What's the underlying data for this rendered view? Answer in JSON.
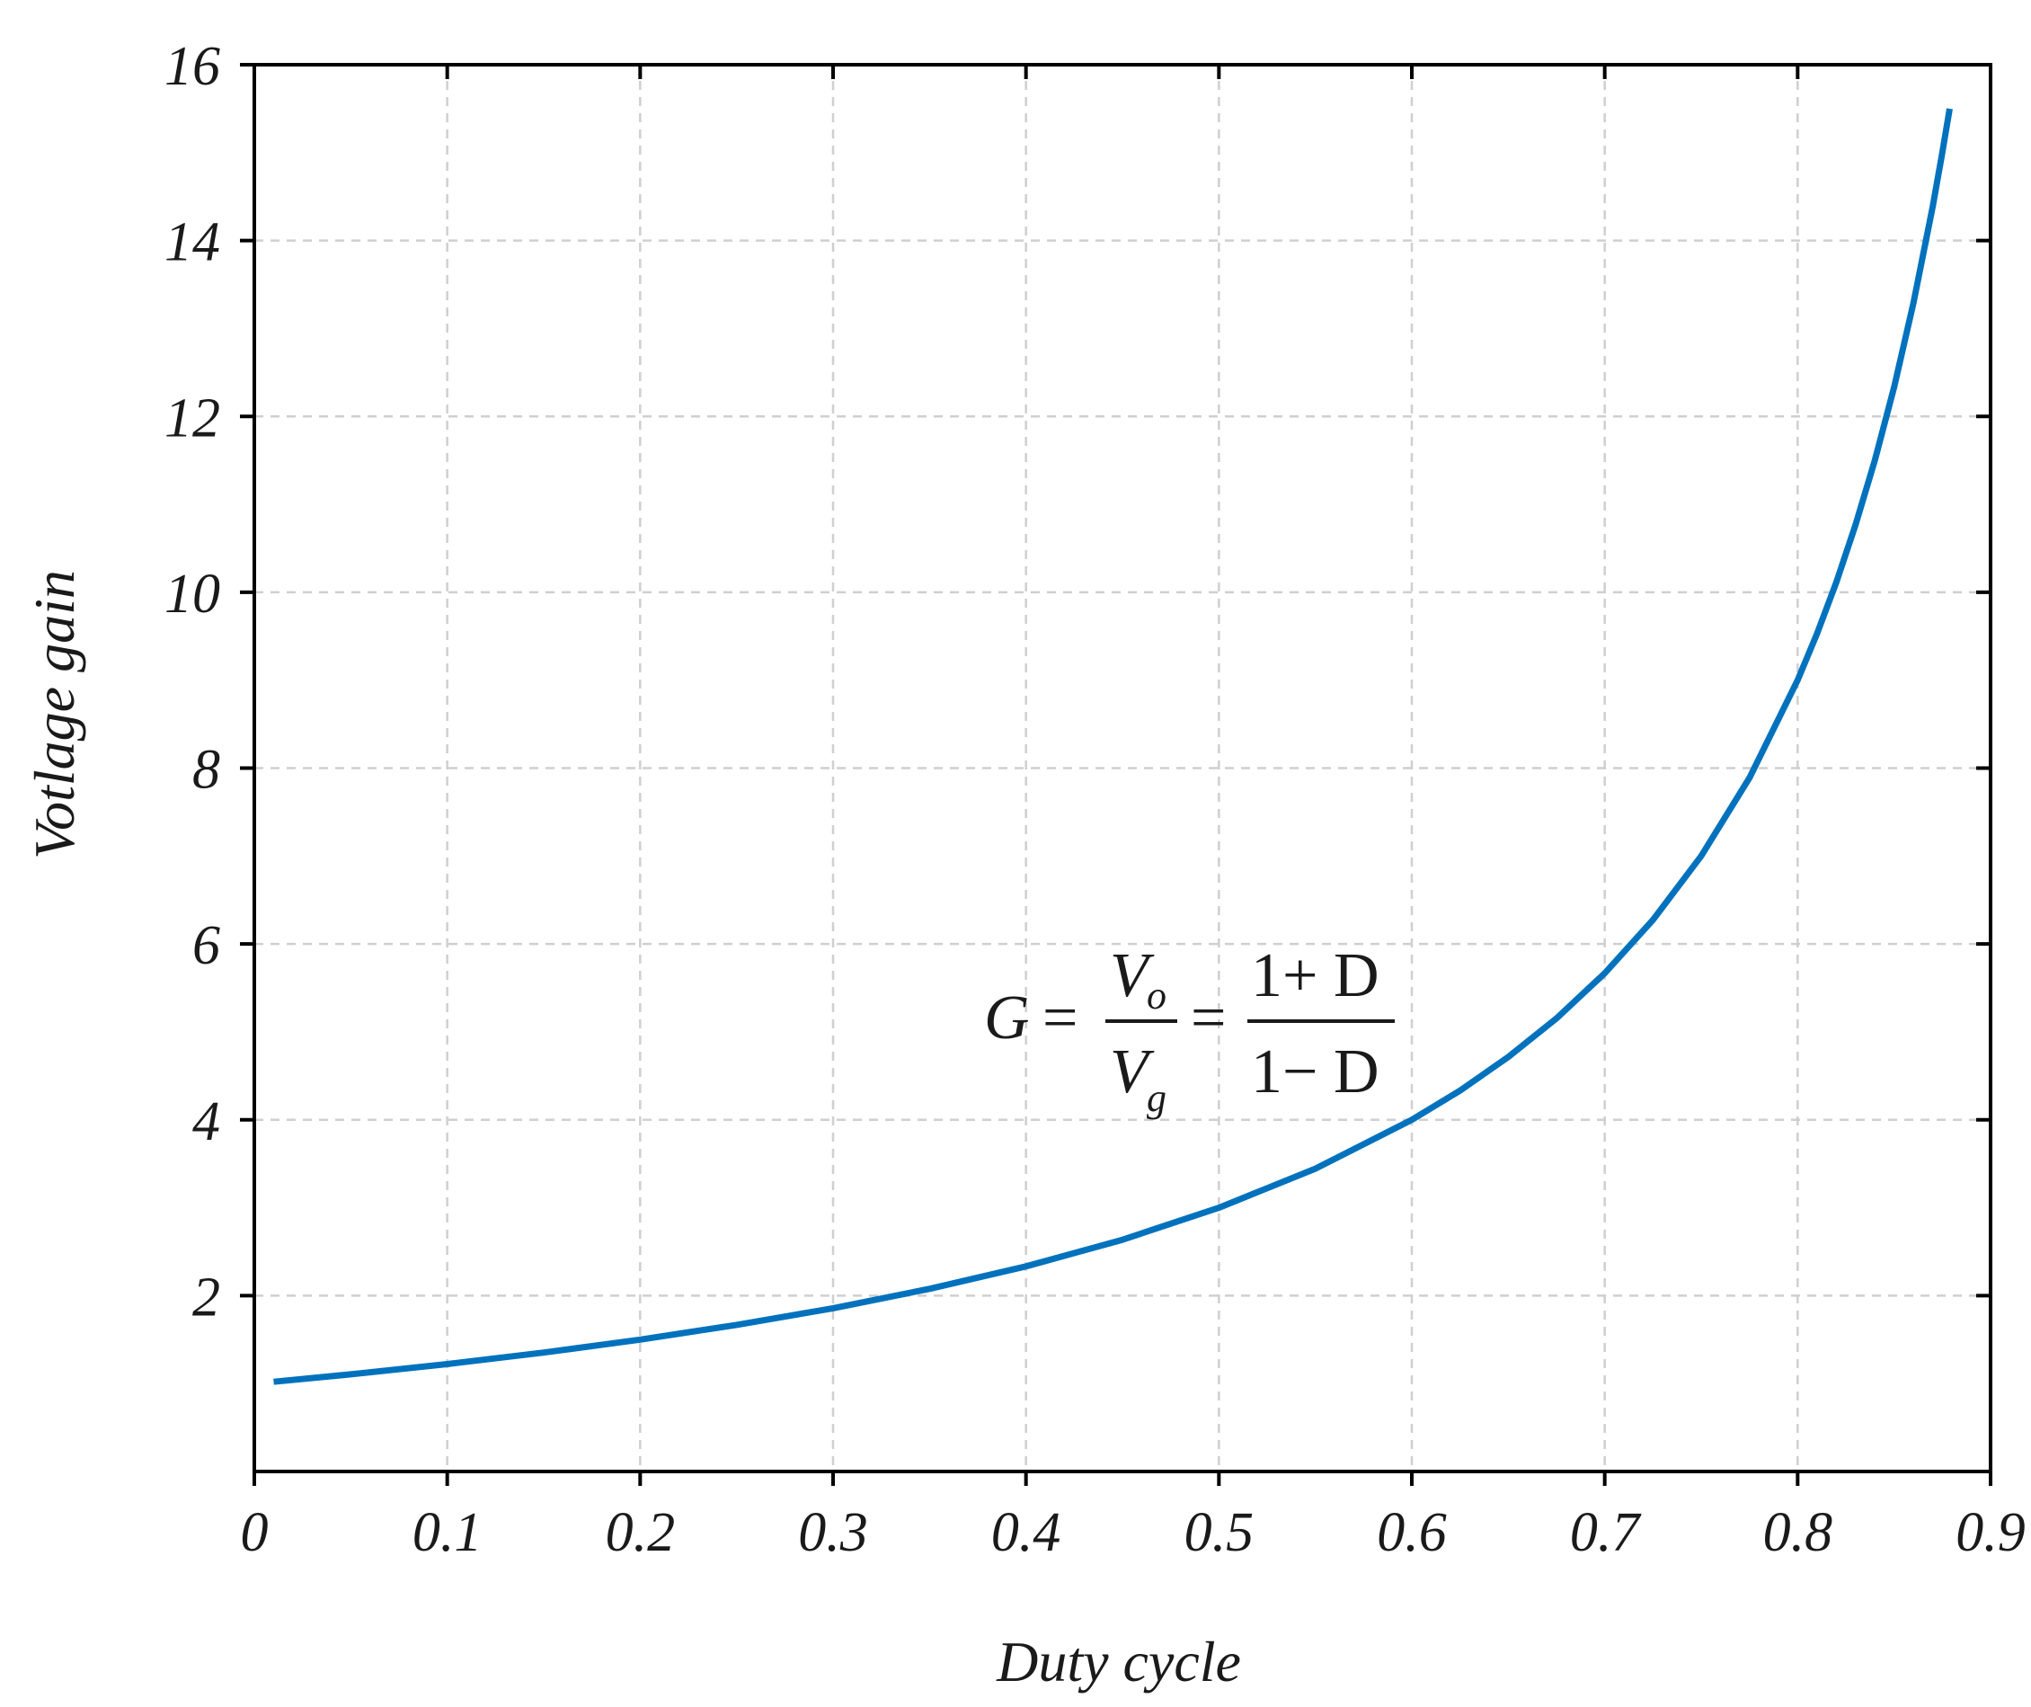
{
  "chart_data": {
    "type": "line",
    "xlabel": "Duty cycle",
    "ylabel": "Votlage gain",
    "xlim": [
      0,
      0.9
    ],
    "ylim": [
      0,
      16
    ],
    "xticks": [
      0,
      0.1,
      0.2,
      0.3,
      0.4,
      0.5,
      0.6,
      0.7,
      0.8,
      0.9
    ],
    "xtick_labels": [
      "0",
      "0.1",
      "0.2",
      "0.3",
      "0.4",
      "0.5",
      "0.6",
      "0.7",
      "0.8",
      "0.9"
    ],
    "yticks": [
      2,
      4,
      6,
      8,
      10,
      12,
      14,
      16
    ],
    "ytick_labels": [
      "2",
      "4",
      "6",
      "8",
      "10",
      "12",
      "14",
      "16"
    ],
    "grid": true,
    "series": [
      {
        "color": "#0072BD",
        "x": [
          0.01,
          0.05,
          0.1,
          0.15,
          0.2,
          0.25,
          0.3,
          0.35,
          0.4,
          0.45,
          0.5,
          0.55,
          0.6,
          0.625,
          0.65,
          0.675,
          0.7,
          0.725,
          0.75,
          0.775,
          0.8,
          0.81,
          0.82,
          0.83,
          0.84,
          0.85,
          0.86,
          0.87,
          0.875,
          0.8788
        ],
        "y": [
          1.02,
          1.105,
          1.222,
          1.353,
          1.5,
          1.667,
          1.857,
          2.077,
          2.333,
          2.636,
          3.0,
          3.444,
          4.0,
          4.333,
          4.714,
          5.154,
          5.667,
          6.273,
          7.0,
          7.889,
          9.0,
          9.526,
          10.111,
          10.765,
          11.5,
          12.333,
          13.286,
          14.385,
          15.0,
          15.5
        ]
      }
    ],
    "annotation": {
      "lhs": "G",
      "eq": "=",
      "frac1_num": "V",
      "frac1_num_sub": "o",
      "frac1_den": "V",
      "frac1_den_sub": "g",
      "frac2_num": "1+ D",
      "frac2_den": "1− D"
    }
  }
}
